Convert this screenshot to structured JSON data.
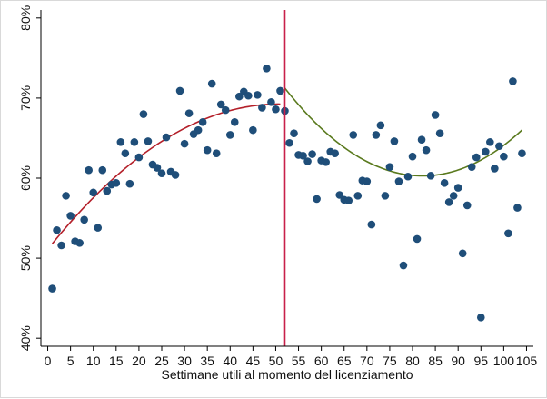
{
  "chart_data": {
    "type": "scatter",
    "title": "",
    "xlabel": "Settimane utili al momento del licenziamento",
    "ylabel": "",
    "xlim": [
      0,
      105
    ],
    "ylim": [
      40,
      80
    ],
    "x_ticks": [
      0,
      5,
      10,
      15,
      20,
      25,
      30,
      35,
      40,
      45,
      50,
      55,
      60,
      65,
      70,
      75,
      80,
      85,
      90,
      95,
      100,
      105
    ],
    "x_tick_labels": [
      "0",
      "5",
      "10",
      "15",
      "20",
      "25",
      "30",
      "35",
      "40",
      "45",
      "50",
      "55",
      "60",
      "65",
      "70",
      "75",
      "80",
      "85",
      "90",
      "95",
      "100",
      "105"
    ],
    "y_ticks": [
      40,
      50,
      60,
      70,
      80
    ],
    "y_tick_labels": [
      "40%",
      "50%",
      "60%",
      "70%",
      "80%"
    ],
    "grid": false,
    "cutoff": {
      "x": 52,
      "color": "#c8204a"
    },
    "points": {
      "color": "#1f4e79",
      "x": [
        1,
        2,
        3,
        4,
        5,
        6,
        7,
        8,
        9,
        10,
        11,
        12,
        13,
        14,
        15,
        16,
        17,
        18,
        19,
        20,
        21,
        22,
        23,
        24,
        25,
        26,
        27,
        28,
        29,
        30,
        31,
        32,
        33,
        34,
        35,
        36,
        37,
        38,
        39,
        40,
        41,
        42,
        43,
        44,
        45,
        46,
        47,
        48,
        49,
        50,
        51,
        52,
        53,
        54,
        55,
        56,
        57,
        58,
        59,
        60,
        61,
        62,
        63,
        64,
        65,
        66,
        67,
        68,
        69,
        70,
        71,
        72,
        73,
        74,
        75,
        76,
        77,
        78,
        79,
        80,
        81,
        82,
        83,
        84,
        85,
        86,
        87,
        88,
        89,
        90,
        91,
        92,
        93,
        94,
        95,
        96,
        97,
        98,
        99,
        100,
        101,
        102,
        103,
        104
      ],
      "y": [
        46.2,
        53.5,
        51.6,
        57.8,
        55.3,
        52.1,
        51.9,
        54.8,
        61.0,
        58.2,
        53.8,
        61.0,
        58.4,
        59.2,
        59.4,
        64.5,
        63.1,
        59.3,
        64.5,
        62.6,
        68.0,
        64.6,
        61.7,
        61.3,
        60.6,
        65.1,
        60.8,
        60.4,
        70.9,
        64.3,
        68.1,
        65.5,
        66.0,
        67.0,
        63.5,
        71.8,
        63.1,
        69.2,
        68.5,
        65.4,
        67.0,
        70.2,
        70.8,
        70.3,
        66.0,
        70.4,
        68.8,
        73.7,
        69.5,
        68.6,
        70.9,
        68.4,
        64.4,
        65.6,
        62.9,
        62.8,
        62.1,
        63.0,
        57.4,
        62.2,
        62.0,
        63.3,
        63.1,
        57.9,
        57.3,
        57.2,
        65.4,
        57.8,
        59.7,
        59.6,
        54.2,
        65.4,
        66.6,
        57.8,
        61.4,
        64.6,
        59.6,
        49.1,
        60.2,
        62.7,
        52.4,
        64.8,
        63.5,
        60.3,
        67.9,
        65.6,
        59.4,
        57.0,
        57.8,
        58.8,
        50.6,
        56.6,
        61.4,
        62.6,
        42.6,
        63.3,
        64.5,
        61.2,
        64.0,
        62.7,
        53.1,
        72.1,
        56.3,
        63.1
      ]
    },
    "fits": [
      {
        "name": "",
        "color": "#b4202a",
        "x_range": [
          1,
          51
        ],
        "coef": [
          51.1,
          0.716,
          -0.00706
        ]
      },
      {
        "name": "",
        "color": "#5a7a1e",
        "x_range": [
          52,
          104
        ],
        "coef": [
          141.55,
          -1.9775,
          0.01203
        ]
      }
    ]
  }
}
